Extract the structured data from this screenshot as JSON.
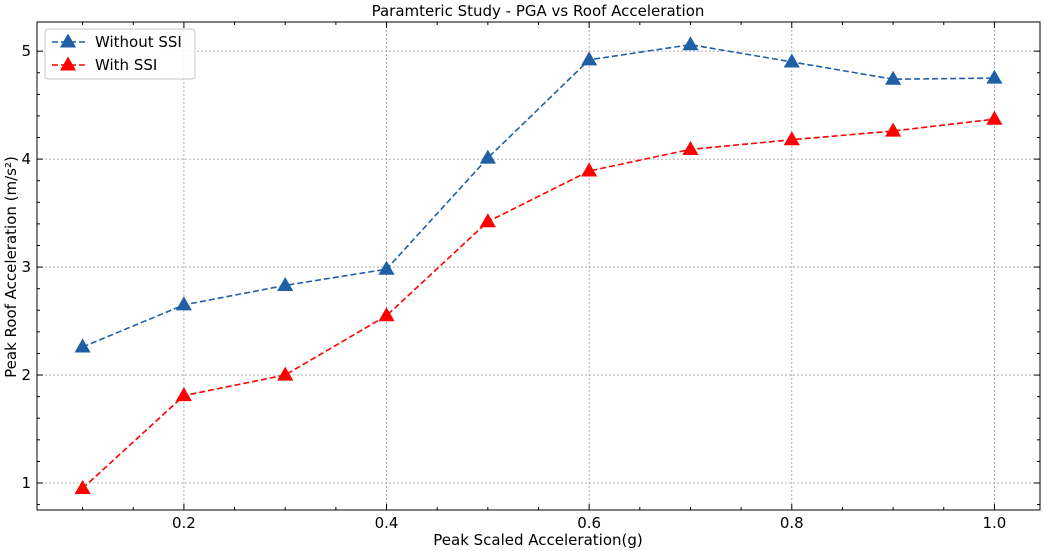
{
  "chart_data": {
    "type": "line",
    "title": "Paramteric Study - PGA vs Roof Acceleration",
    "xlabel": "Peak Scaled Acceleration(g)",
    "ylabel": "Peak Roof Acceleration (m/s²)",
    "xlim": [
      0.055,
      1.045
    ],
    "ylim": [
      0.75,
      5.27
    ],
    "grid": true,
    "legend_position": "top-left",
    "x_ticks": [
      {
        "value": 0.2,
        "label": "0.2"
      },
      {
        "value": 0.4,
        "label": "0.4"
      },
      {
        "value": 0.6,
        "label": "0.6"
      },
      {
        "value": 0.8,
        "label": "0.8"
      },
      {
        "value": 1.0,
        "label": "1.0"
      }
    ],
    "y_ticks": [
      {
        "value": 1,
        "label": "1"
      },
      {
        "value": 2,
        "label": "2"
      },
      {
        "value": 3,
        "label": "3"
      },
      {
        "value": 4,
        "label": "4"
      },
      {
        "value": 5,
        "label": "5"
      }
    ],
    "x": [
      0.1,
      0.2,
      0.3,
      0.4,
      0.5,
      0.6,
      0.7,
      0.8,
      0.9,
      1.0
    ],
    "series": [
      {
        "name": "Without SSI",
        "color": "#1f5fa5",
        "marker": "triangle",
        "line_style": "dashed",
        "values": [
          2.26,
          2.65,
          2.83,
          2.98,
          4.01,
          4.92,
          5.06,
          4.9,
          4.74,
          4.75
        ]
      },
      {
        "name": "With SSI",
        "color": "#ff0000",
        "marker": "triangle",
        "line_style": "dashed",
        "values": [
          0.95,
          1.81,
          2.0,
          2.55,
          3.42,
          3.89,
          4.09,
          4.18,
          4.26,
          4.37
        ]
      }
    ]
  }
}
